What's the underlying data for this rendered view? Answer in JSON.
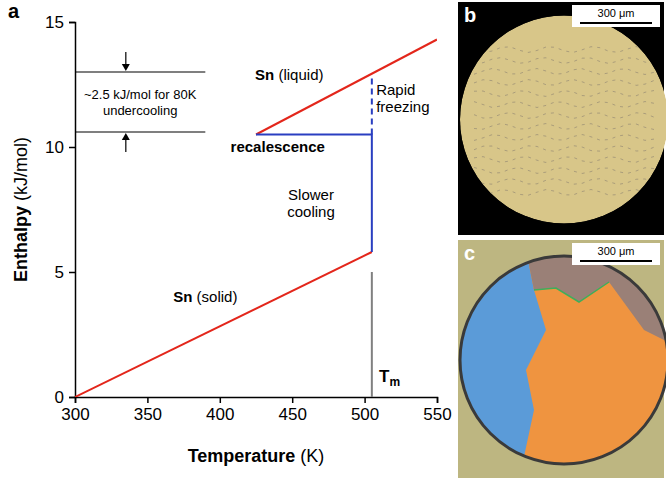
{
  "chart_data": {
    "type": "line",
    "panel": "a",
    "xlabel": "Temperature (K)",
    "ylabel": "Enthalpy (kJ/mol)",
    "xlim": [
      300,
      550
    ],
    "ylim": [
      0,
      15
    ],
    "xticks": [
      300,
      350,
      400,
      450,
      500,
      550
    ],
    "yticks": [
      0,
      5,
      10,
      15
    ],
    "grid": false,
    "series": [
      {
        "color": "#e3261b",
        "x": [
          425,
          550
        ],
        "values": [
          10.5,
          14.3
        ]
      },
      {
        "color": "#e3261b",
        "x": [
          300,
          505
        ],
        "values": [
          0,
          5.8
        ]
      },
      {
        "color": "#2a3fc1",
        "x": [
          425,
          505,
          505
        ],
        "values": [
          10.5,
          10.5,
          5.8
        ]
      },
      {
        "color": "#2a3fc1",
        "line_style": "dashed",
        "x": [
          505,
          505
        ],
        "values": [
          10.5,
          12.9
        ]
      },
      {
        "color": "#808080",
        "x": [
          505,
          505
        ],
        "values": [
          0,
          5.0
        ]
      }
    ],
    "annotations": [
      {
        "text": "Sn (liquid)",
        "x": 448,
        "y": 12.7
      },
      {
        "text": "Rapid freezing",
        "x": 508,
        "y": 12.1
      },
      {
        "text": "recalescence",
        "x": 440,
        "y": 9.8
      },
      {
        "text": "Slower cooling",
        "x": 463,
        "y": 7.9
      },
      {
        "text": "Sn (solid)",
        "x": 390,
        "y": 3.8
      },
      {
        "text": "Tm",
        "x": 510,
        "y": 0.6
      }
    ],
    "bracket": {
      "text": "~2.5 kJ/mol for 80K undercooling",
      "x": [
        300,
        390
      ],
      "values": [
        10.6,
        13.0
      ]
    }
  },
  "images": [
    {
      "label": "b",
      "scale_bar": "300 μm"
    },
    {
      "label": "c",
      "scale_bar": "300 μm"
    }
  ]
}
